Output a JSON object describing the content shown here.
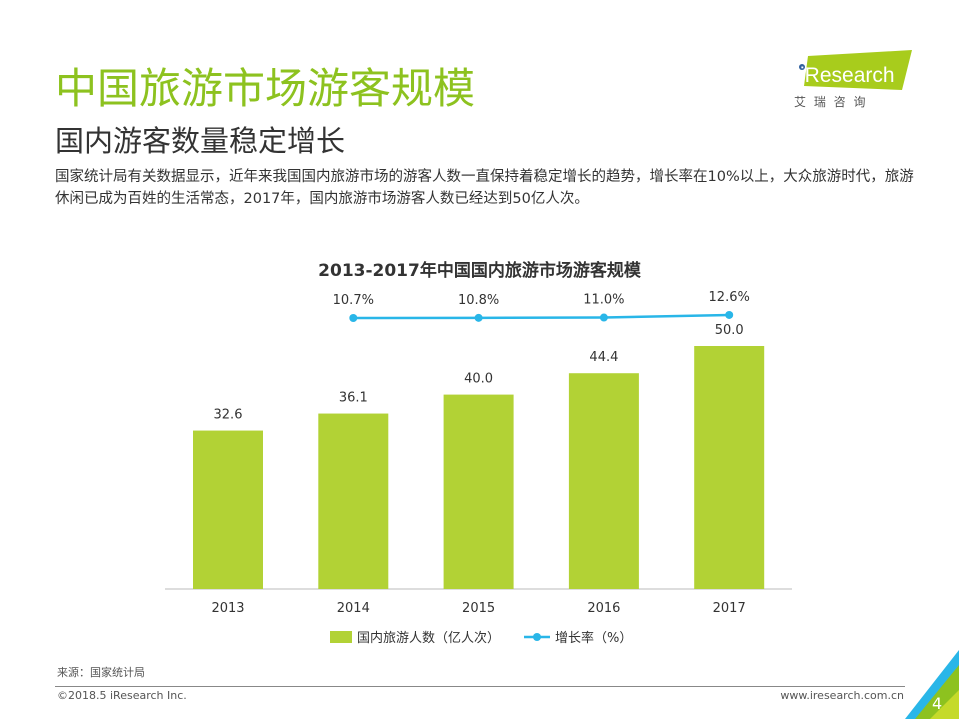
{
  "header": {
    "title": "中国旅游市场游客规模",
    "subtitle": "国内游客数量稳定增长",
    "description": "国家统计局有关数据显示，近年来我国国内旅游市场的游客人数一直保持着稳定增长的趋势，增长率在10%以上，大众旅游时代，旅游休闲已成为百姓的生活常态，2017年，国内旅游市场游客人数已经达到50亿人次。"
  },
  "logo": {
    "brand": "iResearch",
    "cn": "艾 瑞 咨 询"
  },
  "colors": {
    "title": "#8dc21f",
    "bar": "#b2d235",
    "line": "#29b6e8"
  },
  "chart_data": {
    "type": "bar+line",
    "title": "2013-2017年中国国内旅游市场游客规模",
    "categories": [
      "2013",
      "2014",
      "2015",
      "2016",
      "2017"
    ],
    "series": [
      {
        "name": "国内旅游人数（亿人次）",
        "type": "bar",
        "values": [
          32.6,
          36.1,
          40.0,
          44.4,
          50.0
        ],
        "labels": [
          "32.6",
          "36.1",
          "40.0",
          "44.4",
          "50.0"
        ]
      },
      {
        "name": "增长率（%）",
        "type": "line",
        "x": [
          "2014",
          "2015",
          "2016",
          "2017"
        ],
        "values": [
          10.7,
          10.8,
          11.0,
          12.6
        ],
        "labels": [
          "10.7%",
          "10.8%",
          "11.0%",
          "12.6%"
        ]
      }
    ],
    "legend": "bottom",
    "grid": false
  },
  "footer": {
    "source": "来源：国家统计局",
    "copyright": "©2018.5 iResearch Inc.",
    "url": "www.iresearch.com.cn",
    "page": "4"
  }
}
